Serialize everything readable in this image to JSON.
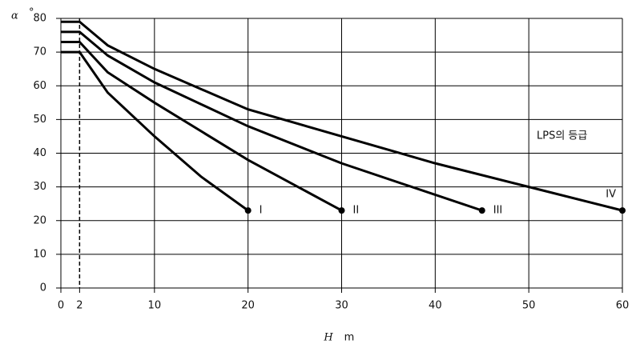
{
  "chart_data": {
    "type": "line",
    "y_label": "α",
    "y_unit": "°",
    "x_label": "H",
    "x_unit": "m",
    "annotation": "LPS의 등급",
    "xlim": [
      0,
      60
    ],
    "ylim": [
      0,
      80
    ],
    "xticks": [
      0,
      2,
      10,
      20,
      30,
      40,
      50,
      60
    ],
    "yticks": [
      0,
      10,
      20,
      30,
      40,
      50,
      60,
      70,
      80
    ],
    "grid": true,
    "vline": {
      "x": 2,
      "style": "dashed"
    },
    "series": [
      {
        "name": "I",
        "color": "#000000",
        "x": [
          0,
          2,
          5,
          10,
          15,
          20
        ],
        "values": [
          70,
          70,
          58,
          45,
          33,
          23
        ]
      },
      {
        "name": "II",
        "color": "#000000",
        "x": [
          0,
          2,
          5,
          10,
          20,
          30
        ],
        "values": [
          73,
          73,
          64,
          55,
          38,
          23
        ]
      },
      {
        "name": "III",
        "color": "#000000",
        "x": [
          0,
          2,
          5,
          10,
          20,
          30,
          45
        ],
        "values": [
          76,
          76,
          69,
          61,
          48,
          37,
          23
        ]
      },
      {
        "name": "IV",
        "color": "#000000",
        "x": [
          0,
          2,
          5,
          10,
          20,
          30,
          40,
          50,
          60
        ],
        "values": [
          79,
          79,
          72,
          65,
          53,
          45,
          37,
          30,
          23
        ]
      }
    ]
  }
}
